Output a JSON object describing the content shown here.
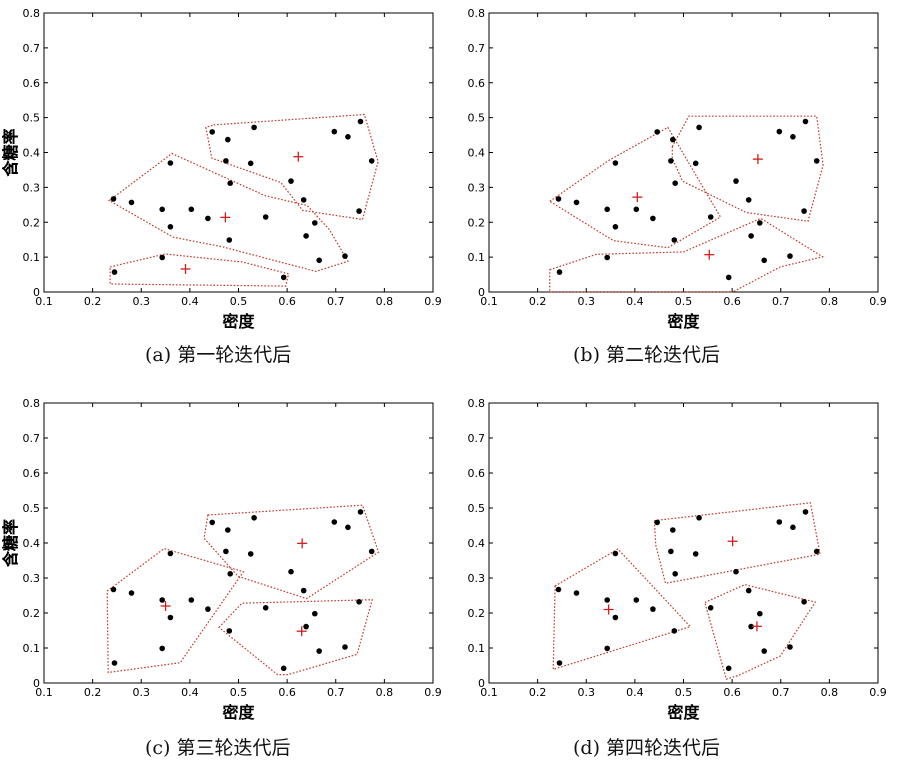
{
  "figure": {
    "captions": [
      "(a) 第一轮迭代后",
      "(b) 第二轮迭代后",
      "(c) 第三轮迭代后",
      "(d) 第四轮迭代后"
    ]
  },
  "colors": {
    "point": "#000000",
    "centroid": "#d21e1e",
    "hull": "#c0392b",
    "axes": "#000000"
  },
  "chart_data": [
    {
      "type": "scatter",
      "title": "(a) 第一轮迭代后",
      "xlabel": "密度",
      "ylabel": "含糖率",
      "xlim": [
        0.1,
        0.9
      ],
      "ylim": [
        0,
        0.8
      ],
      "xticks": [
        "0.1",
        "0.2",
        "0.3",
        "0.4",
        "0.5",
        "0.6",
        "0.7",
        "0.8",
        "0.9"
      ],
      "yticks": [
        "0",
        "0.1",
        "0.2",
        "0.3",
        "0.4",
        "0.5",
        "0.6",
        "0.7",
        "0.8"
      ],
      "points": [
        [
          0.243,
          0.267
        ],
        [
          0.245,
          0.057
        ],
        [
          0.28,
          0.257
        ],
        [
          0.343,
          0.099
        ],
        [
          0.343,
          0.237
        ],
        [
          0.36,
          0.37
        ],
        [
          0.36,
          0.187
        ],
        [
          0.403,
          0.237
        ],
        [
          0.437,
          0.211
        ],
        [
          0.446,
          0.459
        ],
        [
          0.481,
          0.149
        ],
        [
          0.483,
          0.312
        ],
        [
          0.474,
          0.376
        ],
        [
          0.478,
          0.437
        ],
        [
          0.525,
          0.369
        ],
        [
          0.532,
          0.472
        ],
        [
          0.556,
          0.215
        ],
        [
          0.593,
          0.042
        ],
        [
          0.608,
          0.318
        ],
        [
          0.634,
          0.264
        ],
        [
          0.639,
          0.161
        ],
        [
          0.657,
          0.198
        ],
        [
          0.666,
          0.091
        ],
        [
          0.697,
          0.46
        ],
        [
          0.719,
          0.103
        ],
        [
          0.725,
          0.445
        ],
        [
          0.748,
          0.232
        ],
        [
          0.751,
          0.489
        ],
        [
          0.774,
          0.376
        ]
      ],
      "centroids": [
        [
          0.391,
          0.066
        ],
        [
          0.473,
          0.214
        ],
        [
          0.623,
          0.388
        ]
      ],
      "clusters": [
        [
          [
            0.234,
            0.262
          ],
          [
            0.363,
            0.397
          ],
          [
            0.555,
            0.276
          ],
          [
            0.641,
            0.248
          ],
          [
            0.687,
            0.179
          ],
          [
            0.725,
            0.088
          ],
          [
            0.659,
            0.059
          ],
          [
            0.466,
            0.13
          ],
          [
            0.366,
            0.157
          ]
        ],
        [
          [
            0.449,
            0.479
          ],
          [
            0.759,
            0.509
          ],
          [
            0.787,
            0.374
          ],
          [
            0.755,
            0.208
          ],
          [
            0.632,
            0.234
          ],
          [
            0.587,
            0.314
          ],
          [
            0.445,
            0.384
          ],
          [
            0.433,
            0.472
          ]
        ],
        [
          [
            0.236,
            0.072
          ],
          [
            0.349,
            0.109
          ],
          [
            0.508,
            0.086
          ],
          [
            0.603,
            0.052
          ],
          [
            0.597,
            0.017
          ],
          [
            0.236,
            0.023
          ]
        ]
      ]
    },
    {
      "type": "scatter",
      "title": "(b) 第二轮迭代后",
      "xlabel": "密度",
      "ylabel": "含糖率",
      "xlim": [
        0.1,
        0.9
      ],
      "ylim": [
        0,
        0.8
      ],
      "xticks": [
        "0.1",
        "0.2",
        "0.3",
        "0.4",
        "0.5",
        "0.6",
        "0.7",
        "0.8",
        "0.9"
      ],
      "yticks": [
        "0",
        "0.1",
        "0.2",
        "0.3",
        "0.4",
        "0.5",
        "0.6",
        "0.7",
        "0.8"
      ],
      "points": [
        [
          0.243,
          0.267
        ],
        [
          0.245,
          0.057
        ],
        [
          0.28,
          0.257
        ],
        [
          0.343,
          0.099
        ],
        [
          0.343,
          0.237
        ],
        [
          0.36,
          0.37
        ],
        [
          0.36,
          0.187
        ],
        [
          0.403,
          0.237
        ],
        [
          0.437,
          0.211
        ],
        [
          0.446,
          0.459
        ],
        [
          0.481,
          0.149
        ],
        [
          0.483,
          0.312
        ],
        [
          0.474,
          0.376
        ],
        [
          0.478,
          0.437
        ],
        [
          0.525,
          0.369
        ],
        [
          0.532,
          0.472
        ],
        [
          0.556,
          0.215
        ],
        [
          0.593,
          0.042
        ],
        [
          0.608,
          0.318
        ],
        [
          0.634,
          0.264
        ],
        [
          0.639,
          0.161
        ],
        [
          0.657,
          0.198
        ],
        [
          0.666,
          0.091
        ],
        [
          0.697,
          0.46
        ],
        [
          0.719,
          0.103
        ],
        [
          0.725,
          0.445
        ],
        [
          0.748,
          0.232
        ],
        [
          0.751,
          0.489
        ],
        [
          0.774,
          0.376
        ]
      ],
      "centroids": [
        [
          0.405,
          0.272
        ],
        [
          0.553,
          0.107
        ],
        [
          0.653,
          0.381
        ]
      ],
      "clusters": [
        [
          [
            0.225,
            0.26
          ],
          [
            0.346,
            0.377
          ],
          [
            0.468,
            0.472
          ],
          [
            0.576,
            0.215
          ],
          [
            0.468,
            0.127
          ],
          [
            0.356,
            0.147
          ]
        ],
        [
          [
            0.477,
            0.417
          ],
          [
            0.511,
            0.504
          ],
          [
            0.774,
            0.504
          ],
          [
            0.787,
            0.364
          ],
          [
            0.756,
            0.203
          ],
          [
            0.629,
            0.228
          ],
          [
            0.498,
            0.318
          ],
          [
            0.477,
            0.384
          ]
        ],
        [
          [
            0.225,
            0.064
          ],
          [
            0.321,
            0.108
          ],
          [
            0.5,
            0.115
          ],
          [
            0.659,
            0.211
          ],
          [
            0.786,
            0.101
          ],
          [
            0.699,
            0.072
          ],
          [
            0.601,
            0.0
          ],
          [
            0.225,
            0.0
          ]
        ]
      ]
    },
    {
      "type": "scatter",
      "title": "(c) 第三轮迭代后",
      "xlabel": "密度",
      "ylabel": "含糖率",
      "xlim": [
        0.1,
        0.9
      ],
      "ylim": [
        0,
        0.8
      ],
      "xticks": [
        "0.1",
        "0.2",
        "0.3",
        "0.4",
        "0.5",
        "0.6",
        "0.7",
        "0.8",
        "0.9"
      ],
      "yticks": [
        "0",
        "0.1",
        "0.2",
        "0.3",
        "0.4",
        "0.5",
        "0.6",
        "0.7",
        "0.8"
      ],
      "points": [
        [
          0.243,
          0.267
        ],
        [
          0.245,
          0.057
        ],
        [
          0.28,
          0.257
        ],
        [
          0.343,
          0.099
        ],
        [
          0.343,
          0.237
        ],
        [
          0.36,
          0.37
        ],
        [
          0.36,
          0.187
        ],
        [
          0.403,
          0.237
        ],
        [
          0.437,
          0.211
        ],
        [
          0.446,
          0.459
        ],
        [
          0.481,
          0.149
        ],
        [
          0.483,
          0.312
        ],
        [
          0.474,
          0.376
        ],
        [
          0.478,
          0.437
        ],
        [
          0.525,
          0.369
        ],
        [
          0.532,
          0.472
        ],
        [
          0.556,
          0.215
        ],
        [
          0.593,
          0.042
        ],
        [
          0.608,
          0.318
        ],
        [
          0.634,
          0.264
        ],
        [
          0.639,
          0.161
        ],
        [
          0.657,
          0.198
        ],
        [
          0.666,
          0.091
        ],
        [
          0.697,
          0.46
        ],
        [
          0.719,
          0.103
        ],
        [
          0.725,
          0.445
        ],
        [
          0.748,
          0.232
        ],
        [
          0.751,
          0.489
        ],
        [
          0.774,
          0.376
        ]
      ],
      "centroids": [
        [
          0.35,
          0.22
        ],
        [
          0.631,
          0.399
        ],
        [
          0.63,
          0.148
        ]
      ],
      "clusters": [
        [
          [
            0.23,
            0.263
          ],
          [
            0.347,
            0.384
          ],
          [
            0.51,
            0.318
          ],
          [
            0.38,
            0.058
          ],
          [
            0.232,
            0.03
          ]
        ],
        [
          [
            0.437,
            0.48
          ],
          [
            0.755,
            0.508
          ],
          [
            0.788,
            0.374
          ],
          [
            0.64,
            0.241
          ],
          [
            0.499,
            0.305
          ],
          [
            0.429,
            0.414
          ]
        ],
        [
          [
            0.46,
            0.159
          ],
          [
            0.507,
            0.228
          ],
          [
            0.775,
            0.238
          ],
          [
            0.744,
            0.082
          ],
          [
            0.602,
            0.024
          ],
          [
            0.58,
            0.024
          ]
        ]
      ]
    },
    {
      "type": "scatter",
      "title": "(d) 第四轮迭代后",
      "xlabel": "密度",
      "ylabel": "含糖率",
      "xlim": [
        0.1,
        0.9
      ],
      "ylim": [
        0,
        0.8
      ],
      "xticks": [
        "0.1",
        "0.2",
        "0.3",
        "0.4",
        "0.5",
        "0.6",
        "0.7",
        "0.8",
        "0.9"
      ],
      "yticks": [
        "0",
        "0.1",
        "0.2",
        "0.3",
        "0.4",
        "0.5",
        "0.6",
        "0.7",
        "0.8"
      ],
      "points": [
        [
          0.243,
          0.267
        ],
        [
          0.245,
          0.057
        ],
        [
          0.28,
          0.257
        ],
        [
          0.343,
          0.099
        ],
        [
          0.343,
          0.237
        ],
        [
          0.36,
          0.37
        ],
        [
          0.36,
          0.187
        ],
        [
          0.403,
          0.237
        ],
        [
          0.437,
          0.211
        ],
        [
          0.446,
          0.459
        ],
        [
          0.481,
          0.149
        ],
        [
          0.483,
          0.312
        ],
        [
          0.474,
          0.376
        ],
        [
          0.478,
          0.437
        ],
        [
          0.525,
          0.369
        ],
        [
          0.532,
          0.472
        ],
        [
          0.556,
          0.215
        ],
        [
          0.593,
          0.042
        ],
        [
          0.608,
          0.318
        ],
        [
          0.634,
          0.264
        ],
        [
          0.639,
          0.161
        ],
        [
          0.657,
          0.198
        ],
        [
          0.666,
          0.091
        ],
        [
          0.697,
          0.46
        ],
        [
          0.719,
          0.103
        ],
        [
          0.725,
          0.445
        ],
        [
          0.748,
          0.232
        ],
        [
          0.751,
          0.489
        ],
        [
          0.774,
          0.376
        ]
      ],
      "centroids": [
        [
          0.346,
          0.21
        ],
        [
          0.601,
          0.405
        ],
        [
          0.651,
          0.162
        ]
      ],
      "clusters": [
        [
          [
            0.236,
            0.277
          ],
          [
            0.365,
            0.383
          ],
          [
            0.514,
            0.161
          ],
          [
            0.232,
            0.039
          ]
        ],
        [
          [
            0.44,
            0.464
          ],
          [
            0.761,
            0.515
          ],
          [
            0.781,
            0.368
          ],
          [
            0.463,
            0.285
          ],
          [
            0.443,
            0.394
          ]
        ],
        [
          [
            0.544,
            0.23
          ],
          [
            0.626,
            0.281
          ],
          [
            0.771,
            0.231
          ],
          [
            0.699,
            0.077
          ],
          [
            0.612,
            0.021
          ],
          [
            0.588,
            0.011
          ]
        ]
      ]
    }
  ]
}
